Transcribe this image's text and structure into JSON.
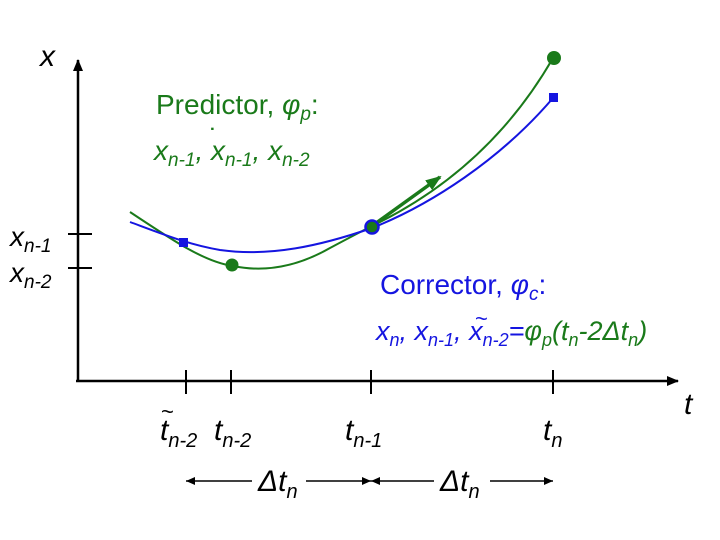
{
  "colors": {
    "predictor": "#1a7a1a",
    "corrector": "#1515e0",
    "axis": "#000000"
  },
  "axes": {
    "x_label": "x",
    "t_label": "t"
  },
  "ticks_y": {
    "xn1": {
      "base": "x",
      "sub": "n-1"
    },
    "xn2": {
      "base": "x",
      "sub": "n-2"
    }
  },
  "ticks_t": {
    "ttilde": {
      "base": "t",
      "sub": "n-2",
      "tilde": "~"
    },
    "tn2": {
      "base": "t",
      "sub": "n-2"
    },
    "tn1": {
      "base": "t",
      "sub": "n-1"
    },
    "tn": {
      "base": "t",
      "sub": "n"
    }
  },
  "delta": {
    "label": "Δt",
    "sub": "n"
  },
  "predictor": {
    "title": "Predictor, ",
    "phi": "φ",
    "phi_sub": "p",
    "colon": ":",
    "terms": [
      {
        "base": "x",
        "sub": "n-1",
        "sep": ", "
      },
      {
        "base": "x",
        "sub": "n-1",
        "sep": ", ",
        "dot": "˙"
      },
      {
        "base": "x",
        "sub": "n-2",
        "sep": ""
      }
    ]
  },
  "corrector": {
    "title": "Corrector, ",
    "phi": "φ",
    "phi_sub": "c",
    "colon": ":",
    "terms": [
      {
        "base": "x",
        "sub": "n",
        "sep": ", "
      },
      {
        "base": "x",
        "sub": "n-1",
        "sep": ", "
      },
      {
        "base": "x",
        "sub": "n-2",
        "sep": "=",
        "tilde": "~"
      }
    ],
    "rhs": {
      "phi": "φ",
      "phi_sub": "p",
      "open": "(",
      "t": "t",
      "t_sub": "n",
      "minus": "-2",
      "delta": "Δt",
      "delta_sub": "n",
      "close": ")"
    }
  }
}
